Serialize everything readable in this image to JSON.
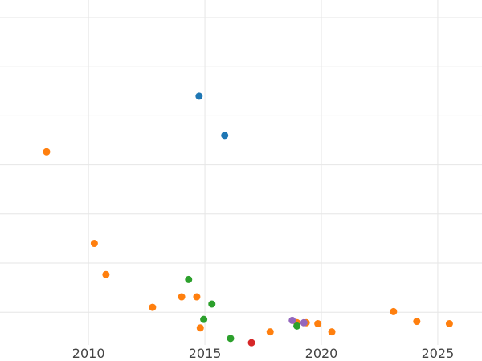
{
  "chart_data": {
    "type": "scatter",
    "title": "",
    "xlabel": "",
    "ylabel": "",
    "xlim": [
      2006.2,
      2026.9
    ],
    "ylim": [
      0,
      100
    ],
    "x_ticks": [
      2010,
      2015,
      2020,
      2025
    ],
    "x_tick_labels": [
      "2010",
      "2015",
      "2020",
      "2025"
    ],
    "y_grid": [
      10,
      25,
      40,
      55,
      70,
      85,
      100
    ],
    "grid": true,
    "legend": "none",
    "colors": {
      "blue": "#1f77b4",
      "orange": "#ff7f0e",
      "green": "#2ca02c",
      "red": "#d62728",
      "purple": "#9467bd",
      "grid": "#e6e6e6",
      "tick_text": "#444444"
    },
    "series": [
      {
        "color": "#1f77b4",
        "points": [
          {
            "x": 2014.75,
            "y": 76.0
          },
          {
            "x": 2015.85,
            "y": 64.0
          }
        ]
      },
      {
        "color": "#ff7f0e",
        "points": [
          {
            "x": 2008.2,
            "y": 59.0
          },
          {
            "x": 2010.25,
            "y": 31.0
          },
          {
            "x": 2010.75,
            "y": 21.5
          },
          {
            "x": 2012.75,
            "y": 11.5
          },
          {
            "x": 2014.0,
            "y": 14.7
          },
          {
            "x": 2014.65,
            "y": 14.7
          },
          {
            "x": 2014.8,
            "y": 5.2
          },
          {
            "x": 2017.8,
            "y": 4.0
          },
          {
            "x": 2018.95,
            "y": 6.8
          },
          {
            "x": 2019.35,
            "y": 6.8
          },
          {
            "x": 2019.85,
            "y": 6.5
          },
          {
            "x": 2020.45,
            "y": 4.0
          },
          {
            "x": 2023.1,
            "y": 10.2
          },
          {
            "x": 2024.1,
            "y": 7.2
          },
          {
            "x": 2025.5,
            "y": 6.5
          }
        ]
      },
      {
        "color": "#2ca02c",
        "points": [
          {
            "x": 2014.3,
            "y": 20.0
          },
          {
            "x": 2015.3,
            "y": 12.5
          },
          {
            "x": 2014.95,
            "y": 7.8
          },
          {
            "x": 2016.1,
            "y": 2.0
          },
          {
            "x": 2018.95,
            "y": 5.8
          }
        ]
      },
      {
        "color": "#d62728",
        "points": [
          {
            "x": 2017.0,
            "y": 0.7
          }
        ]
      },
      {
        "color": "#9467bd",
        "points": [
          {
            "x": 2018.75,
            "y": 7.5
          },
          {
            "x": 2019.25,
            "y": 6.8
          }
        ]
      }
    ]
  }
}
